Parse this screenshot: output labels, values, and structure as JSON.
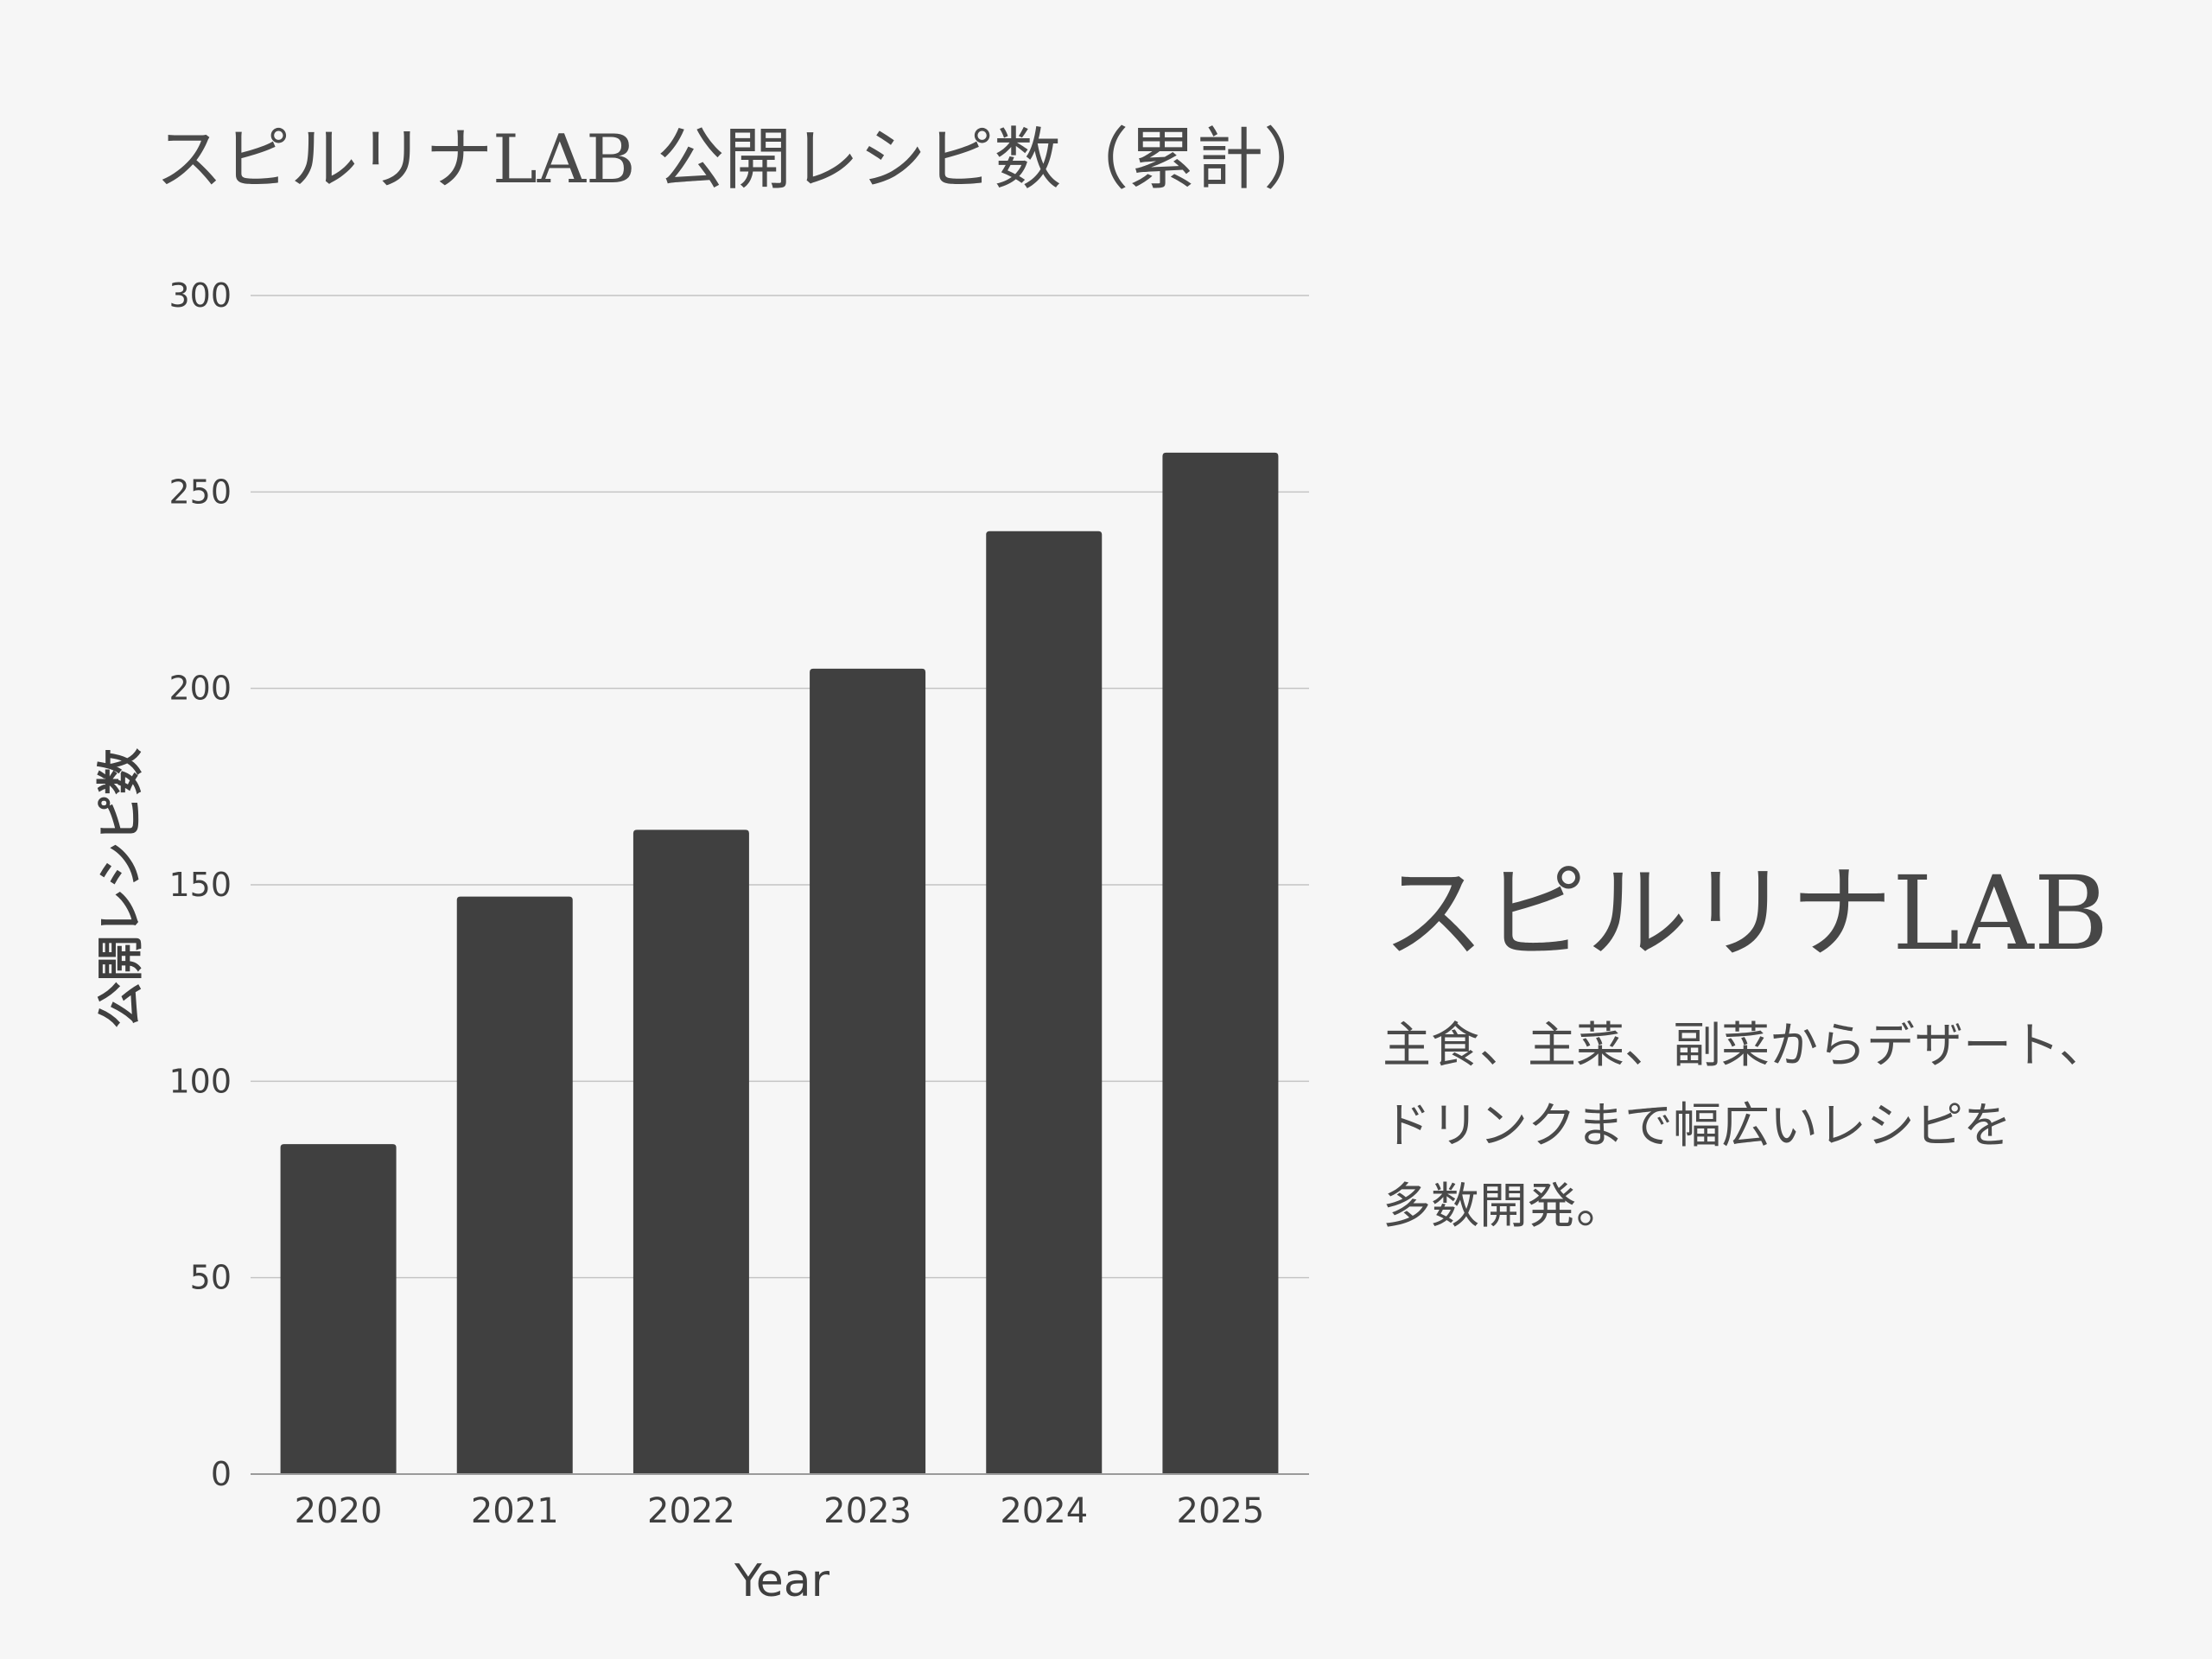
{
  "chart_data": {
    "type": "bar",
    "title": "スピルリナLAB 公開レシピ数（累計）",
    "xlabel": "Year",
    "ylabel": "公開レシピ数",
    "categories": [
      "2020",
      "2021",
      "2022",
      "2023",
      "2024",
      "2025"
    ],
    "values": [
      84,
      147,
      164,
      205,
      240,
      260
    ],
    "ylim": [
      0,
      300
    ],
    "yticks": [
      0,
      50,
      100,
      150,
      200,
      250,
      300
    ],
    "grid": true,
    "legend": "none",
    "bar_color": "#404040",
    "grid_color": "#c4c4c4"
  },
  "side_panel": {
    "brand": "スピルリナLAB",
    "lines": [
      "主食、主菜、副菜からデザート、",
      "ドリンクまで幅広いレシピを",
      "多数開発。"
    ]
  }
}
